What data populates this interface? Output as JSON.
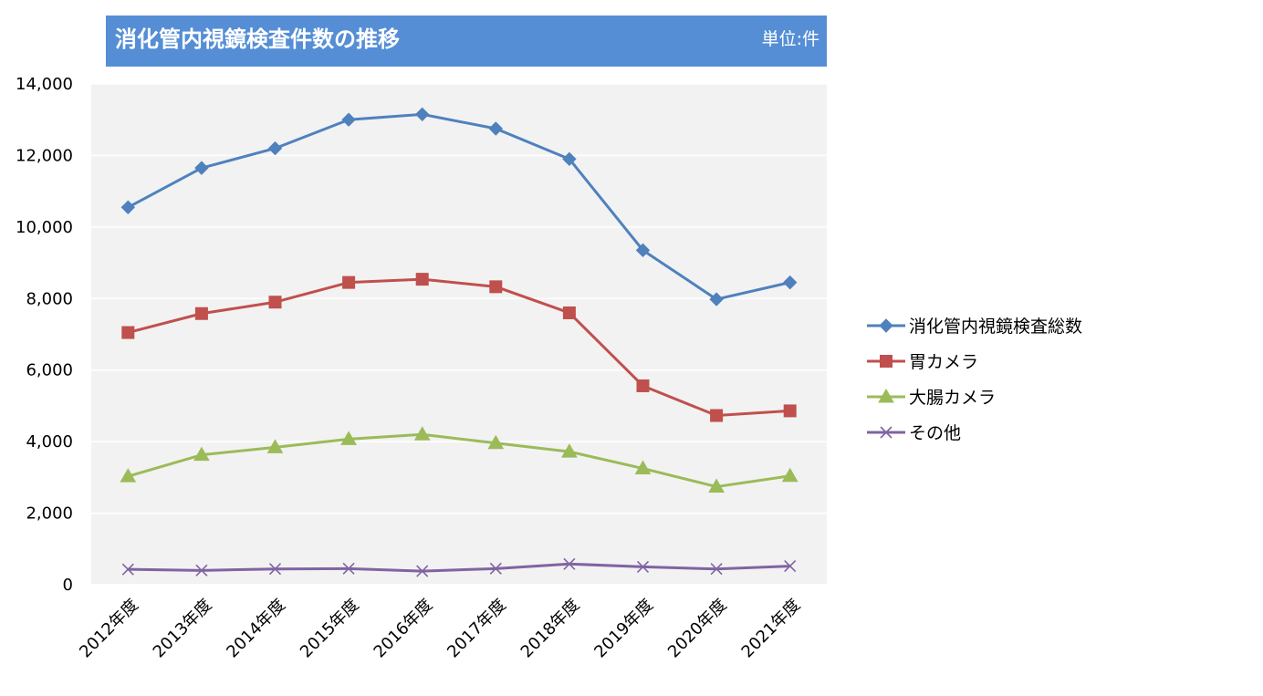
{
  "header": {
    "title": "消化管内視鏡検査件数の推移",
    "unit": "単位:件",
    "background_color": "#558ED5"
  },
  "chart_data": {
    "type": "line",
    "title": "消化管内視鏡検査件数の推移",
    "unit": "単位:件",
    "xlabel": "",
    "ylabel": "",
    "categories": [
      "2012年度",
      "2013年度",
      "2014年度",
      "2015年度",
      "2016年度",
      "2017年度",
      "2018年度",
      "2019年度",
      "2020年度",
      "2021年度"
    ],
    "ylim": [
      0,
      14000
    ],
    "y_ticks": [
      0,
      2000,
      4000,
      6000,
      8000,
      10000,
      12000,
      14000
    ],
    "y_tick_labels": [
      "0",
      "2,000",
      "4,000",
      "6,000",
      "8,000",
      "10,000",
      "12,000",
      "14,000"
    ],
    "grid": true,
    "plot_background": "#F2F2F2",
    "legend_position": "right",
    "series": [
      {
        "name": "消化管内視鏡検査総数",
        "color": "#4F81BD",
        "marker": "diamond",
        "values": [
          10550,
          11650,
          12200,
          13000,
          13150,
          12750,
          11900,
          9350,
          7980,
          8450
        ]
      },
      {
        "name": "胃カメラ",
        "color": "#C0504D",
        "marker": "square",
        "values": [
          7050,
          7580,
          7900,
          8450,
          8540,
          8330,
          7600,
          5560,
          4730,
          4860
        ]
      },
      {
        "name": "大腸カメラ",
        "color": "#9BBB59",
        "marker": "triangle",
        "values": [
          3030,
          3630,
          3840,
          4070,
          4200,
          3960,
          3720,
          3250,
          2740,
          3040
        ]
      },
      {
        "name": "その他",
        "color": "#8064A2",
        "marker": "x",
        "values": [
          430,
          400,
          440,
          450,
          380,
          450,
          580,
          500,
          440,
          520
        ]
      }
    ]
  }
}
